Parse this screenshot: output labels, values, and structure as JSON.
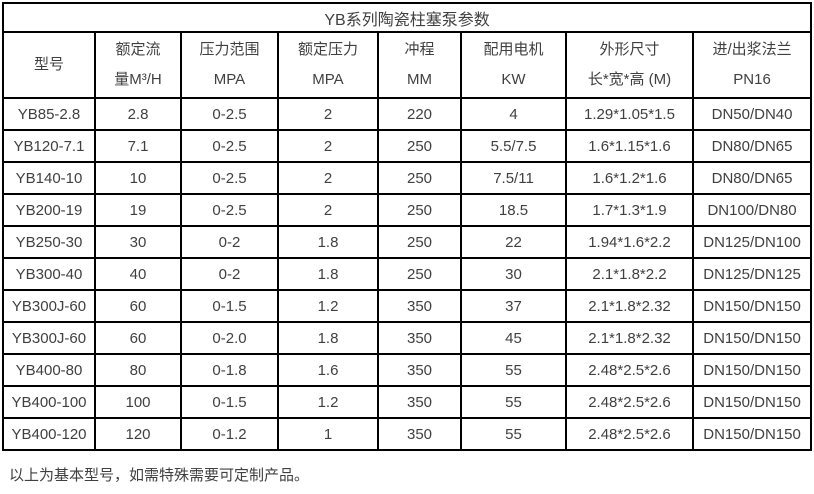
{
  "page": {
    "title": "YB系列陶瓷柱塞泵参数",
    "footnote": "以上为基本型号，如需特殊需要可定制产品。"
  },
  "table": {
    "headers": [
      {
        "lines": [
          "型号"
        ]
      },
      {
        "lines": [
          "额定流",
          "量M³/H"
        ]
      },
      {
        "lines": [
          "压力范围",
          "MPA"
        ]
      },
      {
        "lines": [
          "额定压力",
          "MPA"
        ]
      },
      {
        "lines": [
          "冲程",
          "MM"
        ]
      },
      {
        "lines": [
          "配用电机",
          "KW"
        ]
      },
      {
        "lines": [
          "外形尺寸",
          "长*宽*高 (M)"
        ]
      },
      {
        "lines": [
          "进/出浆法兰",
          "PN16"
        ]
      }
    ],
    "rows": [
      [
        "YB85-2.8",
        "2.8",
        "0-2.5",
        "2",
        "220",
        "4",
        "1.29*1.05*1.5",
        "DN50/DN40"
      ],
      [
        "YB120-7.1",
        "7.1",
        "0-2.5",
        "2",
        "250",
        "5.5/7.5",
        "1.6*1.15*1.6",
        "DN80/DN65"
      ],
      [
        "YB140-10",
        "10",
        "0-2.5",
        "2",
        "250",
        "7.5/11",
        "1.6*1.2*1.6",
        "DN80/DN65"
      ],
      [
        "YB200-19",
        "19",
        "0-2.5",
        "2",
        "250",
        "18.5",
        "1.7*1.3*1.9",
        "DN100/DN80"
      ],
      [
        "YB250-30",
        "30",
        "0-2",
        "1.8",
        "250",
        "22",
        "1.94*1.6*2.2",
        "DN125/DN100"
      ],
      [
        "YB300-40",
        "40",
        "0-2",
        "1.8",
        "250",
        "30",
        "2.1*1.8*2.2",
        "DN125/DN125"
      ],
      [
        "YB300J-60",
        "60",
        "0-1.5",
        "1.2",
        "350",
        "37",
        "2.1*1.8*2.32",
        "DN150/DN150"
      ],
      [
        "YB300J-60",
        "60",
        "0-2.0",
        "1.8",
        "350",
        "45",
        "2.1*1.8*2.32",
        "DN150/DN150"
      ],
      [
        "YB400-80",
        "80",
        "0-1.8",
        "1.6",
        "350",
        "55",
        "2.48*2.5*2.6",
        "DN150/DN150"
      ],
      [
        "YB400-100",
        "100",
        "0-1.5",
        "1.2",
        "350",
        "55",
        "2.48*2.5*2.6",
        "DN150/DN150"
      ],
      [
        "YB400-120",
        "120",
        "0-1.2",
        "1",
        "350",
        "55",
        "2.48*2.5*2.6",
        "DN150/DN150"
      ]
    ]
  },
  "colors": {
    "border": "#000000",
    "text": "#404040",
    "background": "#ffffff"
  }
}
